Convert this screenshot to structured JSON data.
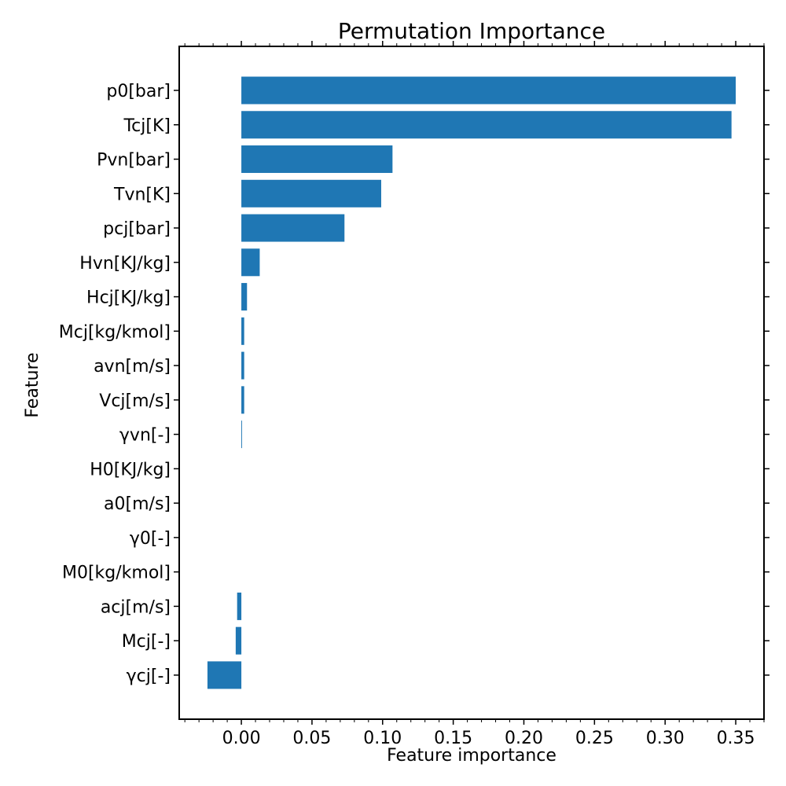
{
  "chart_data": {
    "type": "bar",
    "orientation": "horizontal",
    "title": "Permutation Importance",
    "xlabel": "Feature importance",
    "ylabel": "Feature",
    "xlim": [
      -0.044,
      0.37
    ],
    "xticks": [
      0.0,
      0.05,
      0.1,
      0.15,
      0.2,
      0.25,
      0.3,
      0.35
    ],
    "xtick_labels": [
      "0.00",
      "0.05",
      "0.10",
      "0.15",
      "0.20",
      "0.25",
      "0.30",
      "0.35"
    ],
    "grid": false,
    "bar_color": "#1f77b4",
    "categories": [
      "p0[bar]",
      "Tcj[K]",
      "Pvn[bar]",
      "Tvn[K]",
      "pcj[bar]",
      "Hvn[KJ/kg]",
      "Hcj[KJ/kg]",
      "Mcj[kg/kmol]",
      "avn[m/s]",
      "Vcj[m/s]",
      "γvn[-]",
      "H0[KJ/kg]",
      "a0[m/s]",
      "γ0[-]",
      "M0[kg/kmol]",
      "acj[m/s]",
      "Mcj[-]",
      "γcj[-]"
    ],
    "values": [
      0.35,
      0.347,
      0.107,
      0.099,
      0.073,
      0.013,
      0.004,
      0.002,
      0.002,
      0.002,
      0.0005,
      0.0,
      0.0,
      0.0,
      0.0,
      -0.003,
      -0.004,
      -0.024
    ]
  }
}
